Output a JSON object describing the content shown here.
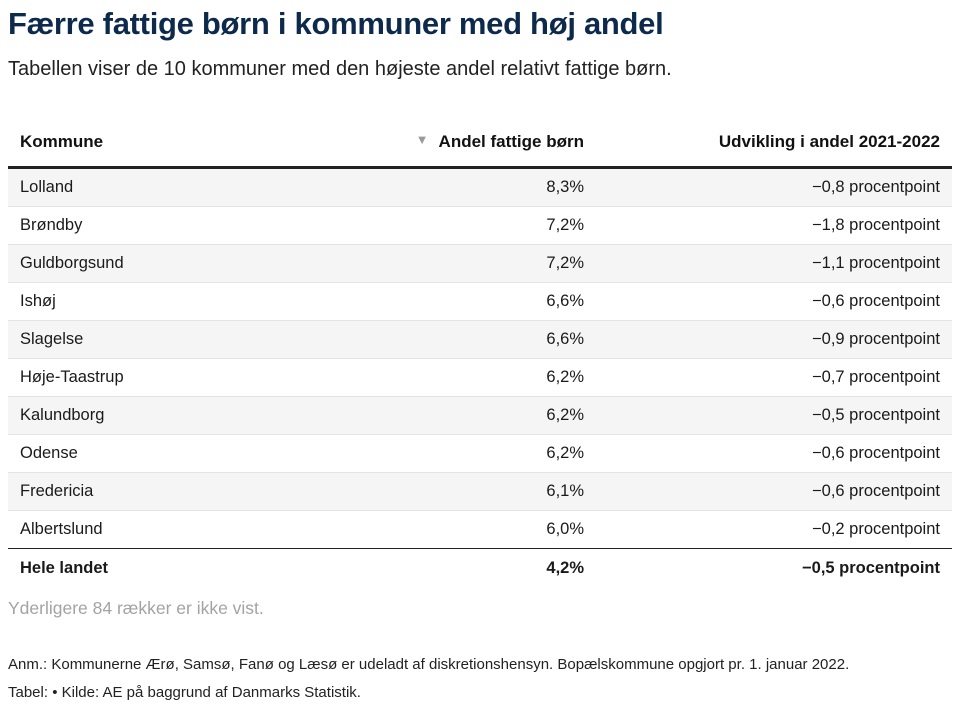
{
  "title": "Færre fattige børn i kommuner med høj andel",
  "subtitle": "Tabellen viser de 10 kommuner med den højeste andel relativt fattige børn.",
  "colors": {
    "title": "#0d2a4d",
    "row_stripe": "#f5f5f5",
    "rule": "#222222",
    "muted_text": "#a3a3a3"
  },
  "chart_data": {
    "type": "table",
    "sort": {
      "column": "Andel fattige børn",
      "direction": "descending",
      "icon": "sort-descending-icon"
    },
    "columns": [
      "Kommune",
      "Andel fattige børn",
      "Udvikling i andel 2021-2022"
    ],
    "rows": [
      [
        "Lolland",
        "8,3%",
        "−0,8 procentpoint"
      ],
      [
        "Brøndby",
        "7,2%",
        "−1,8 procentpoint"
      ],
      [
        "Guldborgsund",
        "7,2%",
        "−1,1 procentpoint"
      ],
      [
        "Ishøj",
        "6,6%",
        "−0,6 procentpoint"
      ],
      [
        "Slagelse",
        "6,6%",
        "−0,9 procentpoint"
      ],
      [
        "Høje-Taastrup",
        "6,2%",
        "−0,7 procentpoint"
      ],
      [
        "Kalundborg",
        "6,2%",
        "−0,5 procentpoint"
      ],
      [
        "Odense",
        "6,2%",
        "−0,6 procentpoint"
      ],
      [
        "Fredericia",
        "6,1%",
        "−0,6 procentpoint"
      ],
      [
        "Albertslund",
        "6,0%",
        "−0,2 procentpoint"
      ]
    ],
    "total_row": [
      "Hele landet",
      "4,2%",
      "−0,5 procentpoint"
    ]
  },
  "more_rows_text": "Yderligere 84 rækker er ikke vist.",
  "note": "Anm.: Kommunerne Ærø, Samsø, Fanø og Læsø er udeladt af diskretionshensyn. Bopælskommune opgjort pr. 1. januar 2022.",
  "source": "Tabel: • Kilde: AE på baggrund af Danmarks Statistik."
}
